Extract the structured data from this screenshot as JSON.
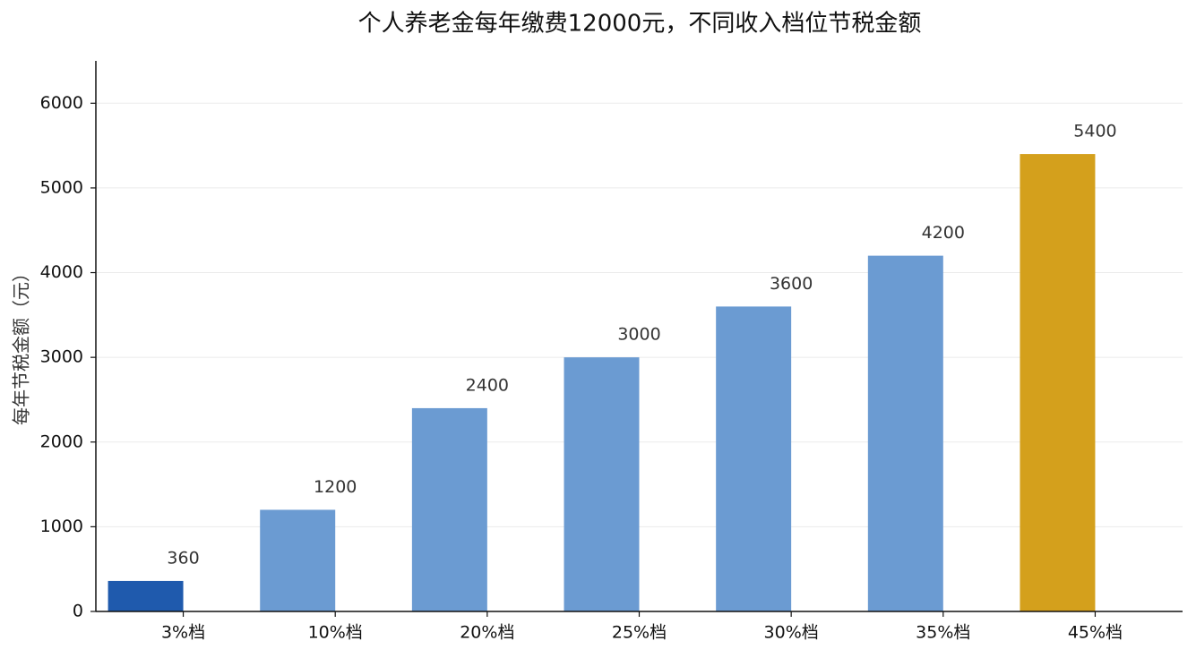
{
  "chart_data": {
    "type": "bar",
    "title": "个人养老金每年缴费12000元，不同收入档位节税金额",
    "y_label": "每年节税金额（元）",
    "categories": [
      "3%档",
      "10%档",
      "20%档",
      "25%档",
      "30%档",
      "35%档",
      "45%档"
    ],
    "values": [
      360,
      1200,
      2400,
      3000,
      3600,
      4200,
      5400
    ],
    "colors": [
      "#1f5aad",
      "#6b9bd2",
      "#6b9bd2",
      "#6b9bd2",
      "#6b9bd2",
      "#6b9bd2",
      "#d4a01c"
    ],
    "ylim": [
      0,
      6500
    ],
    "yticks": [
      0,
      1000,
      2000,
      3000,
      4000,
      5000,
      6000
    ],
    "grid": true
  }
}
